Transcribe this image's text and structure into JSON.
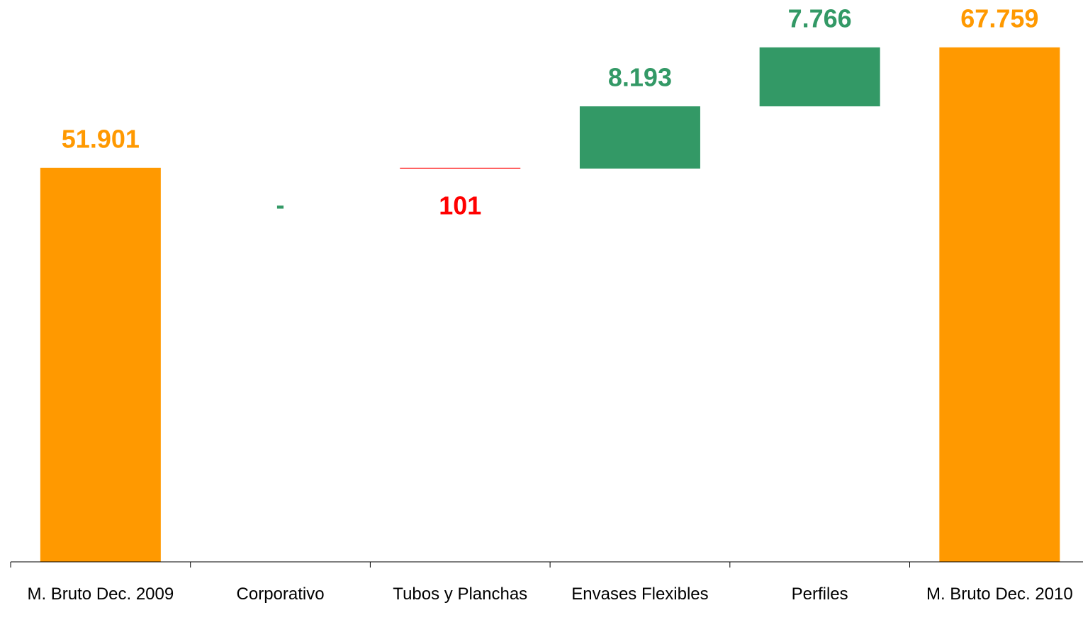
{
  "chart_data": {
    "type": "waterfall",
    "categories": [
      "M. Bruto Dec. 2009",
      "Corporativo",
      "Tubos y Planchas",
      "Envases Flexibles",
      "Perfiles",
      "M. Bruto Dec. 2010"
    ],
    "measure": [
      "total",
      "relative",
      "relative",
      "relative",
      "relative",
      "total"
    ],
    "values": [
      51901,
      0,
      -101,
      8193,
      7766,
      67759
    ],
    "value_labels": [
      "51.901",
      "-",
      "101",
      "8.193",
      "7.766",
      "67.759"
    ],
    "total_color": "#ff9900",
    "increase_color": "#339966",
    "decrease_color": "#ff0000",
    "ylim": [
      0,
      74000
    ]
  }
}
